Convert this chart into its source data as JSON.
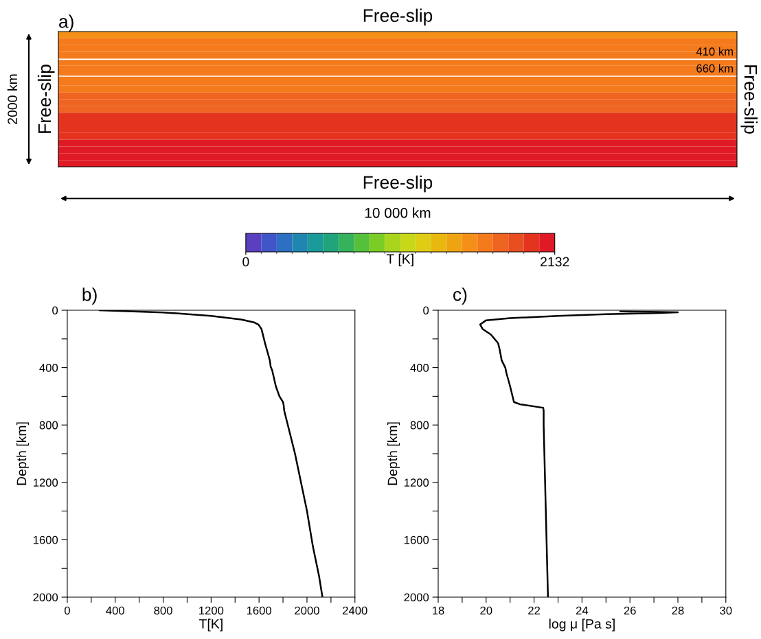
{
  "chart_data": [
    {
      "type": "heatmap",
      "title": "a)",
      "categories": [
        null
      ],
      "y_categories": [
        null,
        null,
        null,
        null,
        null,
        null,
        null,
        null,
        null,
        null,
        null,
        null,
        null,
        null,
        null,
        null,
        null,
        null,
        null,
        null
      ],
      "cells": [
        [
          1500
        ],
        [
          1700
        ],
        [
          1700
        ],
        [
          1700
        ],
        [
          1700
        ],
        [
          1700
        ],
        [
          1700
        ],
        [
          1700
        ],
        [
          1700
        ],
        [
          1800
        ],
        [
          1800
        ],
        [
          1800
        ],
        [
          1950
        ],
        [
          1950
        ],
        [
          1950
        ],
        [
          1950
        ],
        [
          2100
        ],
        [
          2100
        ],
        [
          2100
        ],
        [
          2100
        ]
      ],
      "clim": [
        0,
        2132
      ],
      "cticks": [
        0,
        2132
      ],
      "clabel": "T [K]",
      "tick_labels": false,
      "annotations": [
        "Free-slip",
        "Free-slip",
        "Free-slip",
        "Free-slip",
        "2000 km",
        "10 000 km",
        "410 km",
        "660 km"
      ]
    },
    {
      "type": "line",
      "title": "b)",
      "xlabel": "T[K]",
      "ylabel": "Depth [km]",
      "series": [
        {
          "color": "#000000",
          "x": [
            270,
            800,
            1200,
            1450,
            1560,
            1595,
            1620,
            1650,
            1690,
            1697,
            1710,
            1740,
            1770,
            1800,
            1805,
            1810,
            1900,
            2000,
            2050,
            2100,
            2129
          ],
          "values": [
            0,
            15,
            40,
            65,
            85,
            100,
            130,
            230,
            350,
            394,
            420,
            530,
            600,
            640,
            660,
            700,
            1000,
            1400,
            1650,
            1850,
            2000
          ]
        }
      ],
      "xlim": [
        0,
        2400
      ],
      "ylim": [
        2000,
        0
      ],
      "xticks": [
        0,
        {
          "value": 200,
          "label": null
        },
        400,
        {
          "value": 600,
          "label": null
        },
        800,
        {
          "value": 1000,
          "label": null
        },
        1200,
        {
          "value": 1400,
          "label": null
        },
        1600,
        {
          "value": 1800,
          "label": null
        },
        2000,
        {
          "value": 2200,
          "label": null
        },
        2400
      ],
      "yticks": [
        0,
        {
          "value": 200,
          "label": null
        },
        400,
        {
          "value": 600,
          "label": null
        },
        800,
        {
          "value": 1000,
          "label": null
        },
        1200,
        {
          "value": 1400,
          "label": null
        },
        1600,
        {
          "value": 1800,
          "label": null
        },
        2000
      ]
    },
    {
      "type": "line",
      "title": "c)",
      "xlabel": "log μ [Pa s]",
      "ylabel": "Depth [km]",
      "series": [
        {
          "color": "#000000",
          "x": [
            25.6,
            27.2,
            28.0,
            27.0,
            25.0,
            23.0,
            21.0,
            20.0,
            19.75,
            19.85,
            20.2,
            20.5,
            20.56,
            20.65,
            20.8,
            20.85,
            21.0,
            21.16,
            21.4,
            22.38,
            22.4,
            22.4,
            22.58
          ],
          "values": [
            8,
            12,
            14,
            20,
            28,
            40,
            55,
            70,
            99,
            130,
            170,
            230,
            270,
            350,
            400,
            440,
            530,
            640,
            655,
            680,
            700,
            800,
            2000
          ]
        }
      ],
      "xlim": [
        18,
        30
      ],
      "ylim": [
        2000,
        0
      ],
      "xticks": [
        18,
        {
          "value": 19,
          "label": null
        },
        20,
        {
          "value": 21,
          "label": null
        },
        22,
        {
          "value": 23,
          "label": null
        },
        24,
        {
          "value": 25,
          "label": null
        },
        26,
        {
          "value": 27,
          "label": null
        },
        28,
        {
          "value": 29,
          "label": null
        },
        30
      ],
      "yticks": [
        0,
        {
          "value": 200,
          "label": null
        },
        400,
        {
          "value": 600,
          "label": null
        },
        800,
        {
          "value": 1000,
          "label": null
        },
        1200,
        {
          "value": 1400,
          "label": null
        },
        1600,
        {
          "value": 1800,
          "label": null
        },
        2000
      ]
    }
  ]
}
